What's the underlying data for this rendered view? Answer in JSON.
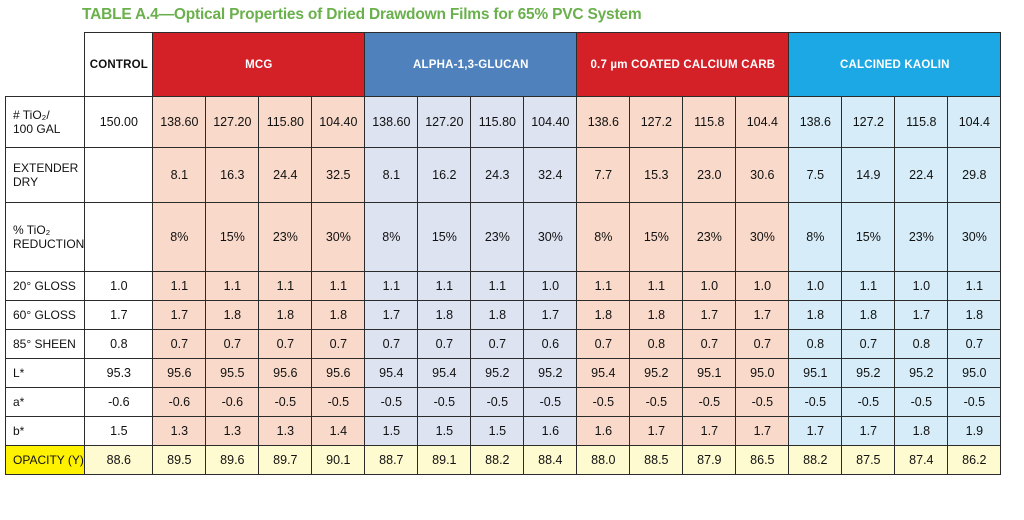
{
  "title": "TABLE A.4—Optical Properties of Dried Drawdown Films for 65% PVC System",
  "groups": [
    {
      "key": "control",
      "label": "CONTROL"
    },
    {
      "key": "mcg",
      "label": "MCG"
    },
    {
      "key": "glucan",
      "label": "ALPHA-1,3-GLUCAN"
    },
    {
      "key": "calcium",
      "label": "0.7 µm COATED CALCIUM CARB"
    },
    {
      "key": "kaolin",
      "label": "CALCINED KAOLIN"
    }
  ],
  "colors": {
    "title_green": "#6ab04c",
    "mcg_header": "#d42027",
    "glucan_header": "#4f81bd",
    "calcium_header": "#d42027",
    "kaolin_header": "#1ca8e4",
    "opacity_label": "#fff200"
  },
  "rows": [
    {
      "key": "tio2",
      "label": "# TiO₂/\n100 GAL",
      "control": "150.00",
      "mcg": [
        "138.60",
        "127.20",
        "115.80",
        "104.40"
      ],
      "glucan": [
        "138.60",
        "127.20",
        "115.80",
        "104.40"
      ],
      "calcium": [
        "138.6",
        "127.2",
        "115.8",
        "104.4"
      ],
      "kaolin": [
        "138.6",
        "127.2",
        "115.8",
        "104.4"
      ]
    },
    {
      "key": "ext",
      "label": "EXTENDER\nDRY",
      "control": "",
      "mcg": [
        "8.1",
        "16.3",
        "24.4",
        "32.5"
      ],
      "glucan": [
        "8.1",
        "16.2",
        "24.3",
        "32.4"
      ],
      "calcium": [
        "7.7",
        "15.3",
        "23.0",
        "30.6"
      ],
      "kaolin": [
        "7.5",
        "14.9",
        "22.4",
        "29.8"
      ]
    },
    {
      "key": "red",
      "label": "% TiO₂\nREDUCTION",
      "control": "",
      "mcg": [
        "8%",
        "15%",
        "23%",
        "30%"
      ],
      "glucan": [
        "8%",
        "15%",
        "23%",
        "30%"
      ],
      "calcium": [
        "8%",
        "15%",
        "23%",
        "30%"
      ],
      "kaolin": [
        "8%",
        "15%",
        "23%",
        "30%"
      ]
    },
    {
      "key": "std",
      "label": "20° GLOSS",
      "control": "1.0",
      "mcg": [
        "1.1",
        "1.1",
        "1.1",
        "1.1"
      ],
      "glucan": [
        "1.1",
        "1.1",
        "1.1",
        "1.0"
      ],
      "calcium": [
        "1.1",
        "1.1",
        "1.0",
        "1.0"
      ],
      "kaolin": [
        "1.0",
        "1.1",
        "1.0",
        "1.1"
      ]
    },
    {
      "key": "std",
      "label": "60° GLOSS",
      "control": "1.7",
      "mcg": [
        "1.7",
        "1.8",
        "1.8",
        "1.8"
      ],
      "glucan": [
        "1.7",
        "1.8",
        "1.8",
        "1.7"
      ],
      "calcium": [
        "1.8",
        "1.8",
        "1.7",
        "1.7"
      ],
      "kaolin": [
        "1.8",
        "1.8",
        "1.7",
        "1.8"
      ]
    },
    {
      "key": "std",
      "label": "85° SHEEN",
      "control": "0.8",
      "mcg": [
        "0.7",
        "0.7",
        "0.7",
        "0.7"
      ],
      "glucan": [
        "0.7",
        "0.7",
        "0.7",
        "0.6"
      ],
      "calcium": [
        "0.7",
        "0.8",
        "0.7",
        "0.7"
      ],
      "kaolin": [
        "0.8",
        "0.7",
        "0.8",
        "0.7"
      ]
    },
    {
      "key": "std",
      "label": "L*",
      "control": "95.3",
      "mcg": [
        "95.6",
        "95.5",
        "95.6",
        "95.6"
      ],
      "glucan": [
        "95.4",
        "95.4",
        "95.2",
        "95.2"
      ],
      "calcium": [
        "95.4",
        "95.2",
        "95.1",
        "95.0"
      ],
      "kaolin": [
        "95.1",
        "95.2",
        "95.2",
        "95.0"
      ]
    },
    {
      "key": "std",
      "label": "a*",
      "control": "-0.6",
      "mcg": [
        "-0.6",
        "-0.6",
        "-0.5",
        "-0.5"
      ],
      "glucan": [
        "-0.5",
        "-0.5",
        "-0.5",
        "-0.5"
      ],
      "calcium": [
        "-0.5",
        "-0.5",
        "-0.5",
        "-0.5"
      ],
      "kaolin": [
        "-0.5",
        "-0.5",
        "-0.5",
        "-0.5"
      ]
    },
    {
      "key": "std",
      "label": "b*",
      "control": "1.5",
      "mcg": [
        "1.3",
        "1.3",
        "1.3",
        "1.4"
      ],
      "glucan": [
        "1.5",
        "1.5",
        "1.5",
        "1.6"
      ],
      "calcium": [
        "1.6",
        "1.7",
        "1.7",
        "1.7"
      ],
      "kaolin": [
        "1.7",
        "1.7",
        "1.8",
        "1.9"
      ]
    },
    {
      "key": "opacity",
      "label": "OPACITY (Y)",
      "control": "88.6",
      "mcg": [
        "89.5",
        "89.6",
        "89.7",
        "90.1"
      ],
      "glucan": [
        "88.7",
        "89.1",
        "88.2",
        "88.4"
      ],
      "calcium": [
        "88.0",
        "88.5",
        "87.9",
        "86.5"
      ],
      "kaolin": [
        "88.2",
        "87.5",
        "87.4",
        "86.2"
      ]
    }
  ]
}
